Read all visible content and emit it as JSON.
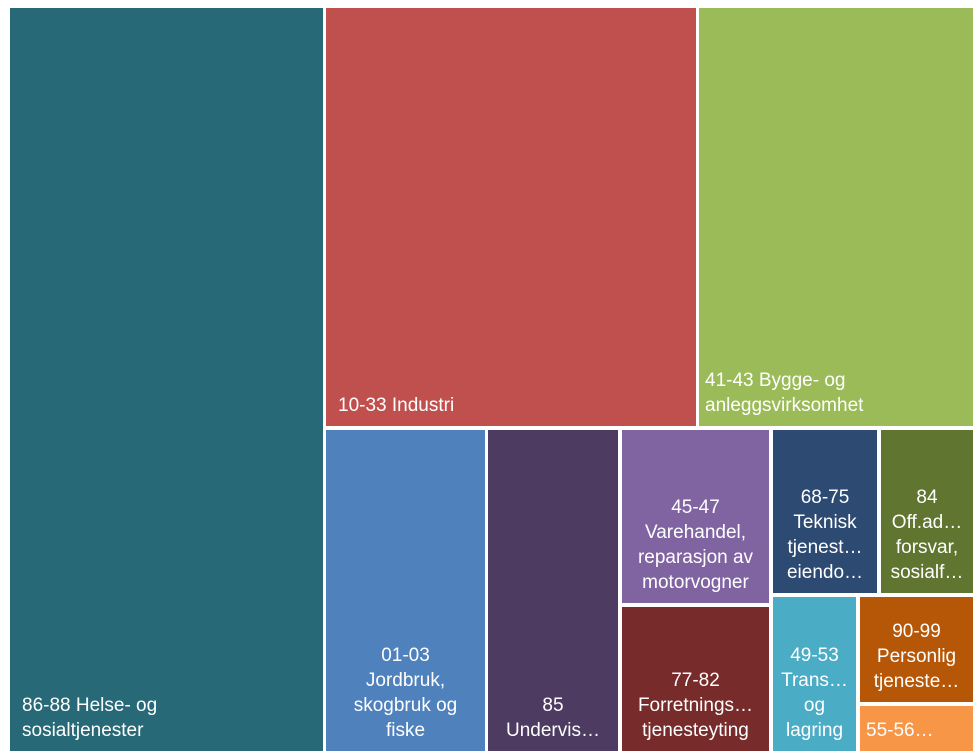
{
  "chart_data": {
    "type": "treemap",
    "tiles": [
      {
        "key": "t1",
        "label_lines": [
          "86-88 Helse- og",
          "sosialtjenester"
        ],
        "color": "#276977"
      },
      {
        "key": "t2",
        "label_lines": [
          "10-33 Industri"
        ],
        "color": "#c0504e"
      },
      {
        "key": "t3",
        "label_lines": [
          "41-43 Bygge- og",
          "anleggsvirksomhet"
        ],
        "color": "#9bbb59"
      },
      {
        "key": "t4",
        "label_lines": [
          "01-03",
          "Jordbruk,",
          "skogbruk og",
          "fiske"
        ],
        "color": "#4f81bd"
      },
      {
        "key": "t5",
        "label_lines": [
          "85",
          "Undervis…"
        ],
        "color": "#4d3b61"
      },
      {
        "key": "t6",
        "label_lines": [
          "45-47",
          "Varehandel,",
          "reparasjon av",
          "motorvogner"
        ],
        "color": "#8064a2"
      },
      {
        "key": "t7",
        "label_lines": [
          "77-82",
          "Forretnings…",
          "tjenesteyting"
        ],
        "color": "#772b2a"
      },
      {
        "key": "t8",
        "label_lines": [
          "68-75",
          "Teknisk",
          "tjenest…",
          "eiendo…"
        ],
        "color": "#2c4a72"
      },
      {
        "key": "t9",
        "label_lines": [
          "84",
          "Off.ad…",
          "forsvar,",
          "sosialf…"
        ],
        "color": "#5f7530"
      },
      {
        "key": "t10",
        "label_lines": [
          "49-53",
          "Trans…",
          "og",
          "lagring"
        ],
        "color": "#4bacc6"
      },
      {
        "key": "t11",
        "label_lines": [
          "90-99",
          "Personlig",
          "tjeneste…"
        ],
        "color": "#b65708"
      },
      {
        "key": "t12",
        "label_lines": [
          "55-56…"
        ],
        "color": "#f79646"
      }
    ]
  }
}
